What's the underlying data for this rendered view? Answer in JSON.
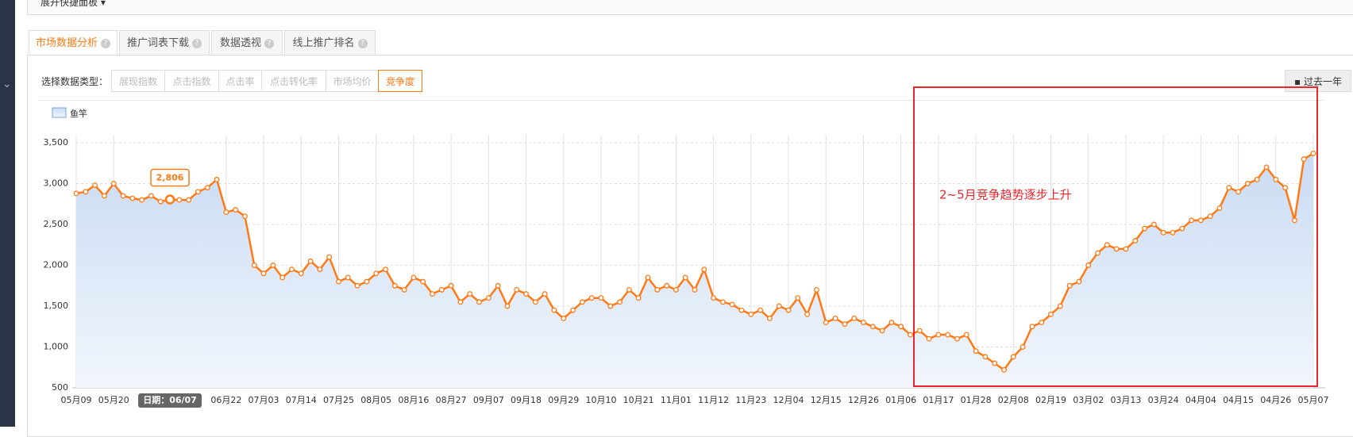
{
  "header": {
    "panel_toggle": "展开快捷面板 ▾"
  },
  "tabs": [
    "市场数据分析",
    "推广词表下载",
    "数据透视",
    "线上推广排名"
  ],
  "data_type_label": "选择数据类型：",
  "data_types": [
    "展现指数",
    "点击指数",
    "点击率",
    "点击转化率",
    "市场均价",
    "竞争度"
  ],
  "period_button": "过去一年",
  "chart_data": {
    "type": "line",
    "annotation": "2~5月竞争趋势逐步上升",
    "tooltip": {
      "value": 2806,
      "label": "2,806",
      "date": "日期：06/07"
    },
    "categories": [
      "05月09",
      null,
      null,
      null,
      "05月20",
      null,
      null,
      null,
      null,
      null,
      null,
      null,
      null,
      null,
      null,
      null,
      "06月22",
      null,
      null,
      null,
      "07月03",
      null,
      null,
      null,
      "07月14",
      null,
      null,
      null,
      "07月25",
      null,
      null,
      null,
      "08月05",
      null,
      null,
      null,
      "08月16",
      null,
      null,
      null,
      "08月27",
      null,
      null,
      null,
      "09月07",
      null,
      null,
      null,
      "09月18",
      null,
      null,
      null,
      "09月29",
      null,
      null,
      null,
      "10月10",
      null,
      null,
      null,
      "10月21",
      null,
      null,
      null,
      "11月01",
      null,
      null,
      null,
      "11月12",
      null,
      null,
      null,
      "11月23",
      null,
      null,
      null,
      "12月04",
      null,
      null,
      null,
      "12月15",
      null,
      null,
      null,
      "12月26",
      null,
      null,
      null,
      "01月06",
      null,
      null,
      null,
      "01月17",
      null,
      null,
      null,
      "01月28",
      null,
      null,
      null,
      "02月08",
      null,
      null,
      null,
      "02月19",
      null,
      null,
      null,
      "03月02",
      null,
      null,
      null,
      "03月13",
      null,
      null,
      null,
      "03月24",
      null,
      null,
      null,
      "04月04",
      null,
      null,
      null,
      "04月15",
      null,
      null,
      null,
      "04月26",
      null,
      null,
      null,
      "05月07"
    ],
    "series": [
      {
        "name": "鱼竿",
        "color": "#ff7a14",
        "values": [
          2880,
          2900,
          2980,
          2850,
          3000,
          2850,
          2820,
          2800,
          2850,
          2780,
          2806,
          2800,
          2800,
          2900,
          2950,
          3050,
          2650,
          2680,
          2600,
          2000,
          1900,
          2000,
          1850,
          1950,
          1900,
          2050,
          1950,
          2100,
          1800,
          1850,
          1750,
          1800,
          1900,
          1950,
          1750,
          1700,
          1850,
          1800,
          1650,
          1700,
          1750,
          1550,
          1650,
          1550,
          1600,
          1750,
          1500,
          1700,
          1650,
          1550,
          1650,
          1450,
          1350,
          1450,
          1550,
          1600,
          1600,
          1500,
          1550,
          1700,
          1600,
          1850,
          1700,
          1750,
          1700,
          1850,
          1700,
          1950,
          1600,
          1550,
          1520,
          1450,
          1400,
          1450,
          1350,
          1500,
          1450,
          1600,
          1400,
          1700,
          1300,
          1350,
          1280,
          1350,
          1300,
          1250,
          1200,
          1300,
          1250,
          1150,
          1200,
          1100,
          1150,
          1150,
          1100,
          1150,
          950,
          880,
          800,
          720,
          880,
          1000,
          1250,
          1300,
          1400,
          1500,
          1750,
          1800,
          2000,
          2150,
          2250,
          2200,
          2200,
          2300,
          2450,
          2500,
          2400,
          2400,
          2450,
          2550,
          2550,
          2600,
          2700,
          2950,
          2900,
          3000,
          3050,
          3200,
          3050,
          2950,
          2550,
          3300,
          3370
        ]
      }
    ],
    "ylim": [
      500,
      3500
    ],
    "yticks": [
      500,
      {
        "value": 1000,
        "label": "1,000"
      },
      {
        "value": 1500,
        "label": "1,500"
      },
      {
        "value": 2000,
        "label": "2,000"
      },
      {
        "value": 2500,
        "label": "2,500"
      },
      {
        "value": 3000,
        "label": "3,000"
      },
      {
        "value": 3500,
        "label": "3,500"
      }
    ],
    "grid": true
  }
}
